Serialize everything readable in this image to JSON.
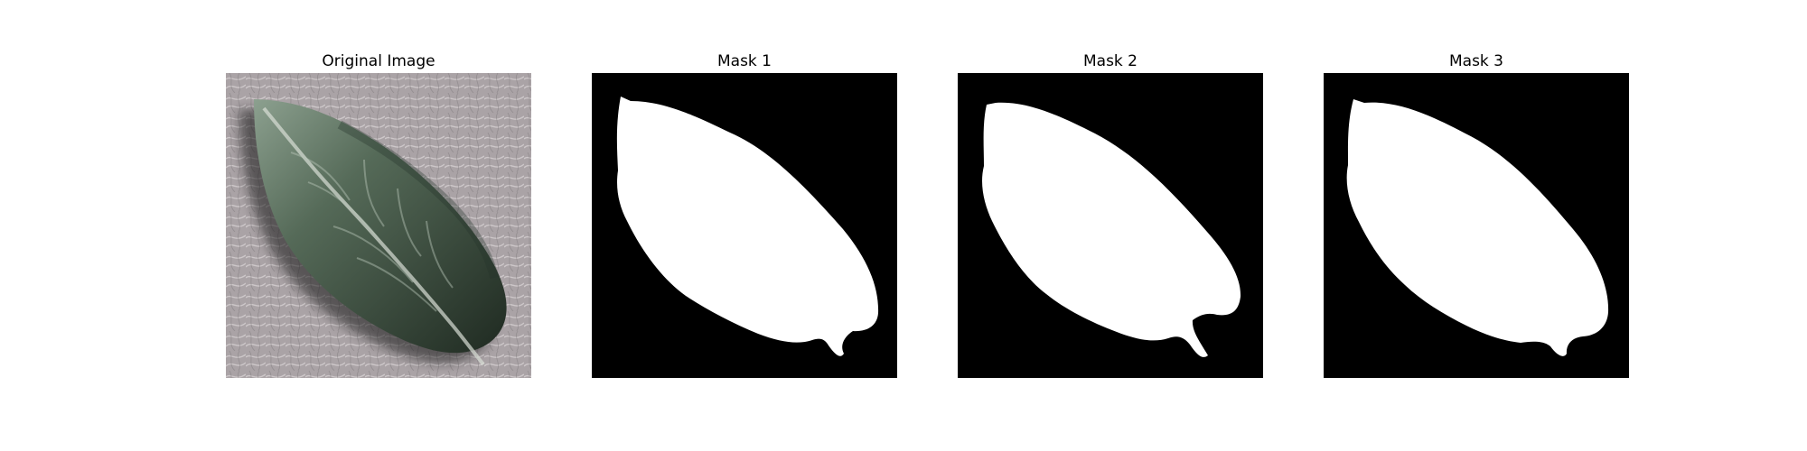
{
  "panels": [
    {
      "title": "Original Image",
      "kind": "photo"
    },
    {
      "title": "Mask 1",
      "kind": "mask"
    },
    {
      "title": "Mask 2",
      "kind": "mask"
    },
    {
      "title": "Mask 3",
      "kind": "mask"
    }
  ],
  "colors": {
    "mask_background": "#000000",
    "mask_foreground": "#ffffff",
    "leaf_dark": "#2c3a2f",
    "leaf_light": "#7f9683",
    "surface": "#aaa3a6"
  }
}
